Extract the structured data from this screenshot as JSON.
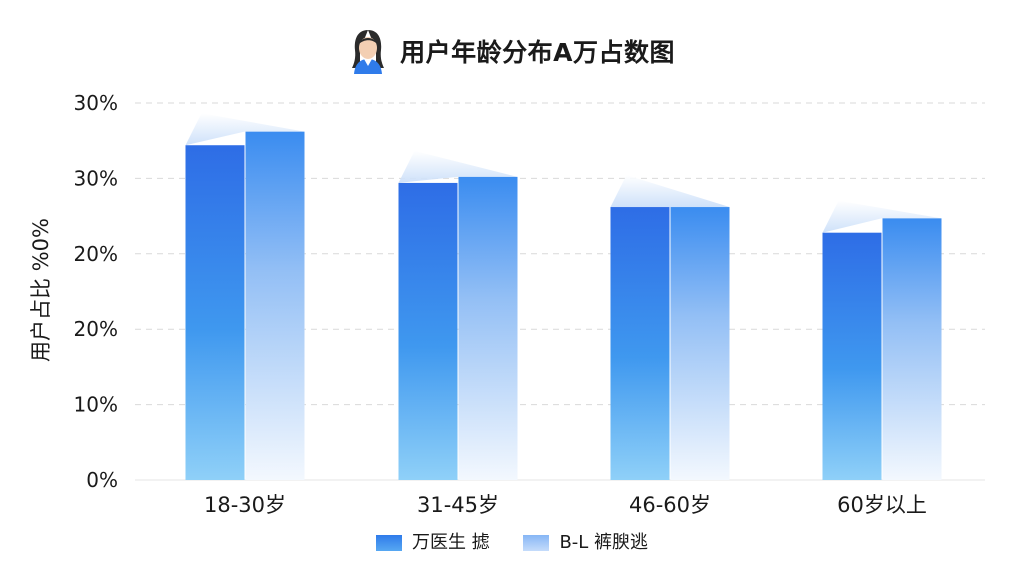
{
  "title": "用户年龄分布A万占数图",
  "avatar_icon": "person-avatar-icon",
  "chart_data": {
    "type": "bar",
    "title": "用户年龄分布A万占数图",
    "ylabel": "用户占比 %0%",
    "xlabel": "",
    "categories": [
      "18-30岁",
      "31-45岁",
      "46-60岁",
      "60岁以上"
    ],
    "ytick_labels": [
      "0%",
      "10%",
      "20%",
      "20%",
      "30%",
      "30%"
    ],
    "ylim": [
      0,
      5
    ],
    "grid": true,
    "legend_position": "bottom",
    "series": [
      {
        "name": "万医生 摅",
        "color": "#2f7bea",
        "values": [
          4.44,
          3.94,
          3.62,
          3.28
        ]
      },
      {
        "name": "B-L 裤腴逃",
        "color": "#86b6f5",
        "values": [
          4.62,
          4.02,
          3.62,
          3.47
        ]
      }
    ]
  }
}
